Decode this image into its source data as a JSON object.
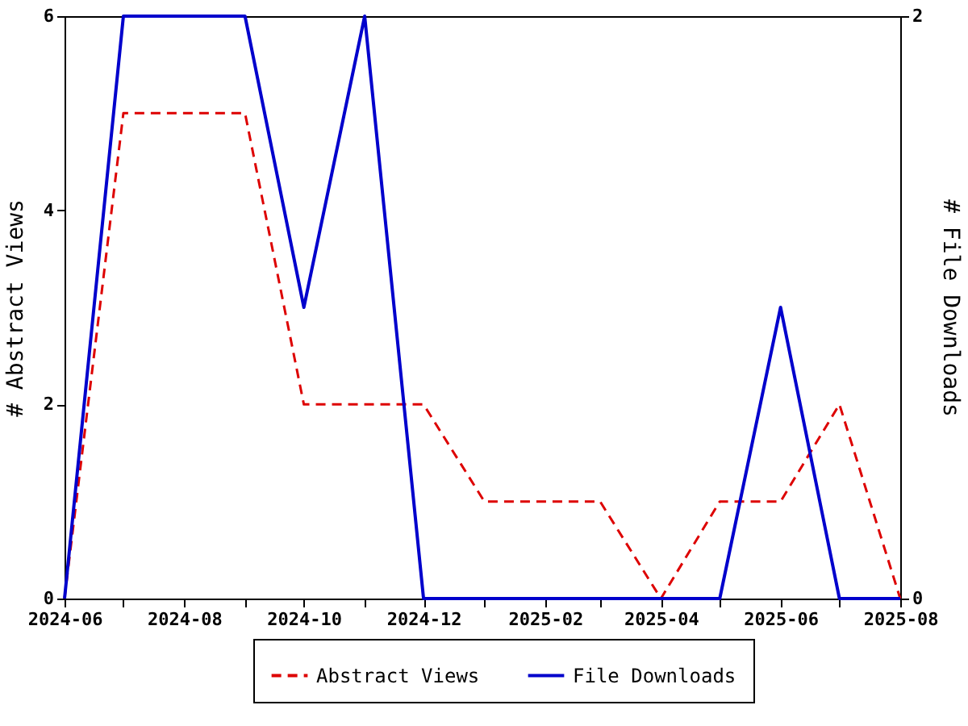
{
  "chart_data": {
    "type": "line",
    "ylabel": "# Abstract Views",
    "y2label": "# File Downloads",
    "x": [
      "2024-06",
      "2024-07",
      "2024-08",
      "2024-09",
      "2024-10",
      "2024-11",
      "2024-12",
      "2025-01",
      "2025-02",
      "2025-03",
      "2025-04",
      "2025-05",
      "2025-06",
      "2025-07",
      "2025-08"
    ],
    "series": [
      {
        "name": "Abstract Views",
        "color": "#dd0000",
        "line_style": "dashed",
        "values": [
          0,
          5,
          5,
          5,
          2,
          2,
          2,
          1,
          1,
          1,
          0,
          1,
          1,
          2,
          0
        ]
      },
      {
        "name": "File Downloads",
        "color": "#0000cc",
        "line_style": "solid",
        "axis": "y2",
        "values": [
          0,
          2,
          2,
          2,
          1,
          2,
          0,
          0,
          0,
          0,
          0,
          0,
          1,
          0,
          0
        ]
      }
    ],
    "xlim": [
      "2024-06",
      "2025-08"
    ],
    "xticks": [
      {
        "value": "2024-06",
        "label": "2024-06"
      },
      {
        "value": "2024-07",
        "label": null
      },
      {
        "value": "2024-08",
        "label": "2024-08"
      },
      {
        "value": "2024-09",
        "label": null
      },
      {
        "value": "2024-10",
        "label": "2024-10"
      },
      {
        "value": "2024-11",
        "label": null
      },
      {
        "value": "2024-12",
        "label": "2024-12"
      },
      {
        "value": "2025-01",
        "label": null
      },
      {
        "value": "2025-02",
        "label": "2025-02"
      },
      {
        "value": "2025-03",
        "label": null
      },
      {
        "value": "2025-04",
        "label": "2025-04"
      },
      {
        "value": "2025-05",
        "label": null
      },
      {
        "value": "2025-06",
        "label": "2025-06"
      },
      {
        "value": "2025-07",
        "label": null
      },
      {
        "value": "2025-08",
        "label": "2025-08"
      }
    ],
    "ylim": [
      0,
      6
    ],
    "yticks": [
      0,
      2,
      4,
      6
    ],
    "y2lim": [
      0,
      2
    ],
    "y2ticks": [
      0,
      2
    ],
    "grid": false,
    "legend": "bottom",
    "marker": "none"
  }
}
